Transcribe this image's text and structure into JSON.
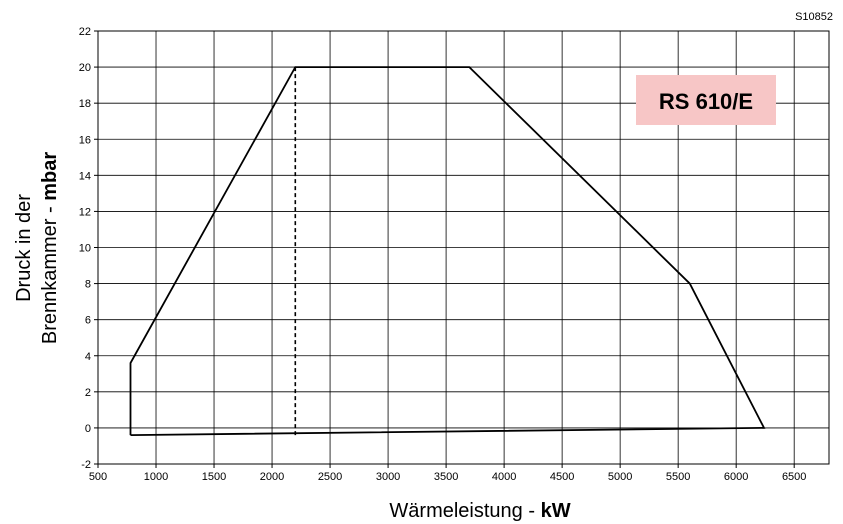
{
  "chart_data": {
    "type": "line",
    "code": "S10852",
    "model_label": "RS 610/E",
    "model_label_bg": "#f7c6c6",
    "xlabel_prefix": "Wärmeleistung - ",
    "xlabel_unit": "kW",
    "ylabel_line1": "Druck in der",
    "ylabel_line2_prefix": "Brennkammer - ",
    "ylabel_unit": "mbar",
    "xlim": [
      500,
      6800
    ],
    "ylim": [
      -2,
      22
    ],
    "x_ticks": [
      500,
      1000,
      1500,
      2000,
      2500,
      3000,
      3500,
      4000,
      4500,
      5000,
      5500,
      6000,
      6500
    ],
    "y_ticks": [
      -2,
      0,
      2,
      4,
      6,
      8,
      10,
      12,
      14,
      16,
      18,
      20,
      22
    ],
    "grid": true,
    "series": [
      {
        "style": "solid",
        "points": [
          [
            780,
            -0.4
          ],
          [
            780,
            3.6
          ],
          [
            2200,
            20
          ],
          [
            3700,
            20
          ],
          [
            5600,
            8
          ],
          [
            6240,
            0
          ],
          [
            780,
            -0.4
          ]
        ]
      },
      {
        "style": "dashed",
        "points": [
          [
            2200,
            -0.4
          ],
          [
            2200,
            20
          ]
        ]
      }
    ]
  }
}
